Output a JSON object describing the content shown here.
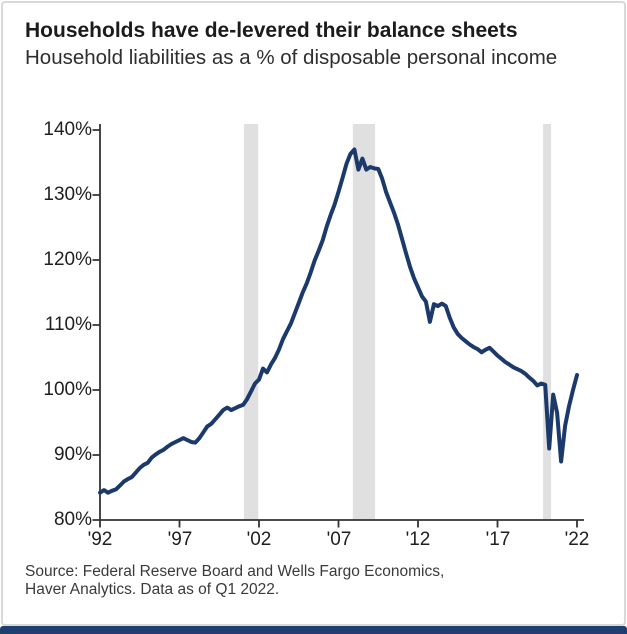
{
  "card": {
    "title": "Households have de-levered their balance sheets",
    "subtitle": "Household liabilities as a % of disposable personal income",
    "source_line1": "Source: Federal Reserve Board and Wells Fargo Economics,",
    "source_line2": "Haver Analytics. Data as of Q1 2022."
  },
  "footer_bar_color": "#1f3f70",
  "chart_data": {
    "type": "line",
    "title": "Households have de-levered their balance sheets",
    "subtitle": "Household liabilities as a % of disposable personal income",
    "grid": false,
    "legend": false,
    "x_axis": {
      "range": [
        1992,
        2022.4
      ],
      "ticks": [
        1992,
        1997,
        2002,
        2007,
        2012,
        2017,
        2022
      ],
      "tick_labels": [
        "'92",
        "'97",
        "'02",
        "'07",
        "'12",
        "'17",
        "'22"
      ]
    },
    "y_axis": {
      "range": [
        80,
        140
      ],
      "unit": "%",
      "ticks": [
        140,
        130,
        120,
        110,
        100,
        90,
        80
      ],
      "tick_labels": [
        "140%",
        "130%",
        "120%",
        "110%",
        "100%",
        "90%",
        "80%"
      ]
    },
    "recession_bands": [
      [
        2001.05,
        2001.95
      ],
      [
        2007.9,
        2009.3
      ],
      [
        2019.87,
        2020.37
      ]
    ],
    "colors": {
      "line": "#1b3a6b",
      "recession_shading": "#e0e0e0",
      "axis": "#333333"
    },
    "series": [
      {
        "name": "Household liabilities as a % of disposable personal income",
        "start_year": 1992,
        "frequency": "quarterly",
        "end_period": "Q1 2022",
        "values": [
          84.2,
          84.6,
          84.2,
          84.5,
          84.7,
          85.3,
          85.9,
          86.3,
          86.6,
          87.3,
          88.0,
          88.5,
          88.8,
          89.6,
          90.1,
          90.5,
          90.8,
          91.3,
          91.7,
          92.0,
          92.3,
          92.6,
          92.3,
          92.0,
          91.9,
          92.6,
          93.5,
          94.4,
          94.8,
          95.5,
          96.2,
          96.9,
          97.3,
          96.9,
          97.2,
          97.5,
          97.7,
          98.6,
          99.8,
          101.0,
          101.6,
          103.3,
          102.7,
          103.9,
          104.9,
          106.2,
          107.8,
          109.0,
          110.2,
          111.8,
          113.4,
          115.0,
          116.4,
          118.1,
          119.9,
          121.4,
          123.0,
          125.1,
          126.9,
          128.5,
          130.5,
          132.6,
          134.8,
          136.3,
          137.0,
          133.9,
          135.6,
          133.9,
          134.3,
          134.1,
          134.0,
          132.5,
          130.4,
          128.8,
          127.2,
          125.4,
          123.2,
          121.0,
          118.9,
          117.2,
          115.8,
          114.4,
          113.6,
          110.5,
          113.2,
          112.9,
          113.3,
          112.9,
          111.1,
          109.6,
          108.6,
          108.0,
          107.5,
          107.0,
          106.6,
          106.3,
          105.8,
          106.2,
          106.5,
          105.9,
          105.3,
          104.8,
          104.3,
          103.9,
          103.5,
          103.2,
          102.9,
          102.5,
          101.9,
          101.4,
          100.7,
          101.0,
          100.8,
          91.0,
          99.3,
          96.5,
          89.0,
          94.5,
          97.5,
          100.0,
          102.3
        ]
      }
    ]
  }
}
